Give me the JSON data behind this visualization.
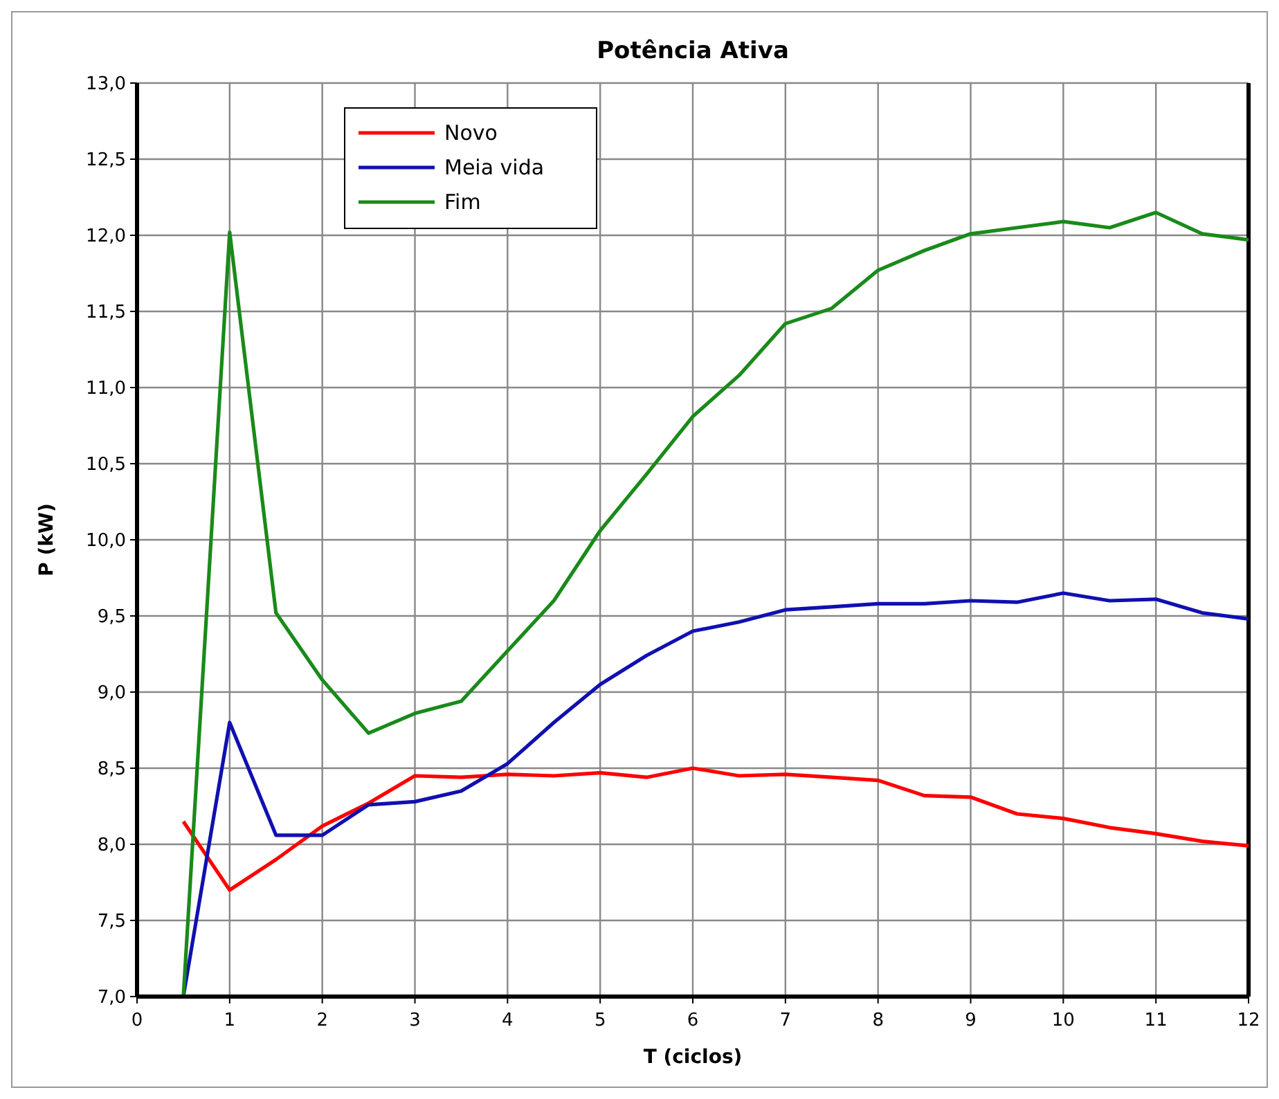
{
  "chart_data": {
    "type": "line",
    "title": "Potência Ativa",
    "xlabel": "T (ciclos)",
    "ylabel": "P (kW)",
    "x": [
      0.5,
      1,
      1.5,
      2,
      2.5,
      3,
      3.5,
      4,
      4.5,
      5,
      5.5,
      6,
      6.5,
      7,
      7.5,
      8,
      8.5,
      9,
      9.5,
      10,
      10.5,
      11,
      11.5,
      12
    ],
    "series": [
      {
        "name": "Novo",
        "color": "#ff0000",
        "values": [
          8.15,
          7.7,
          7.9,
          8.12,
          8.27,
          8.45,
          8.44,
          8.46,
          8.45,
          8.47,
          8.44,
          8.5,
          8.45,
          8.46,
          8.44,
          8.42,
          8.32,
          8.31,
          8.2,
          8.17,
          8.11,
          8.07,
          8.02,
          7.99
        ]
      },
      {
        "name": "Meia vida",
        "color": "#1010b0",
        "values": [
          7.0,
          8.8,
          8.06,
          8.06,
          8.26,
          8.28,
          8.35,
          8.53,
          8.8,
          9.05,
          9.24,
          9.4,
          9.46,
          9.54,
          9.56,
          9.58,
          9.58,
          9.6,
          9.59,
          9.65,
          9.6,
          9.61,
          9.52,
          9.48
        ]
      },
      {
        "name": "Fim",
        "color": "#1a8a1a",
        "values": [
          7.0,
          12.02,
          9.52,
          9.08,
          8.73,
          8.86,
          8.94,
          9.27,
          9.6,
          10.06,
          10.43,
          10.81,
          11.08,
          11.42,
          11.52,
          11.77,
          11.9,
          12.01,
          12.05,
          12.09,
          12.05,
          12.15,
          12.01,
          11.97
        ]
      }
    ],
    "xlim": [
      0,
      12
    ],
    "xticks": [
      0,
      1,
      2,
      3,
      4,
      5,
      6,
      7,
      8,
      9,
      10,
      11,
      12
    ],
    "ylim": [
      7,
      13
    ],
    "yticks": [
      {
        "value": 7,
        "label": "7,0"
      },
      {
        "value": 7.5,
        "label": "7,5"
      },
      {
        "value": 8,
        "label": "8,0"
      },
      {
        "value": 8.5,
        "label": "8,5"
      },
      {
        "value": 9,
        "label": "9,0"
      },
      {
        "value": 9.5,
        "label": "9,5"
      },
      {
        "value": 10,
        "label": "10,0"
      },
      {
        "value": 10.5,
        "label": "10,5"
      },
      {
        "value": 11,
        "label": "11,0"
      },
      {
        "value": 11.5,
        "label": "11,5"
      },
      {
        "value": 12,
        "label": "12,0"
      },
      {
        "value": 12.5,
        "label": "12,5"
      },
      {
        "value": 13,
        "label": "13,0"
      }
    ],
    "grid": true,
    "legend": "top left",
    "marker": "none",
    "line_style": "solid"
  }
}
